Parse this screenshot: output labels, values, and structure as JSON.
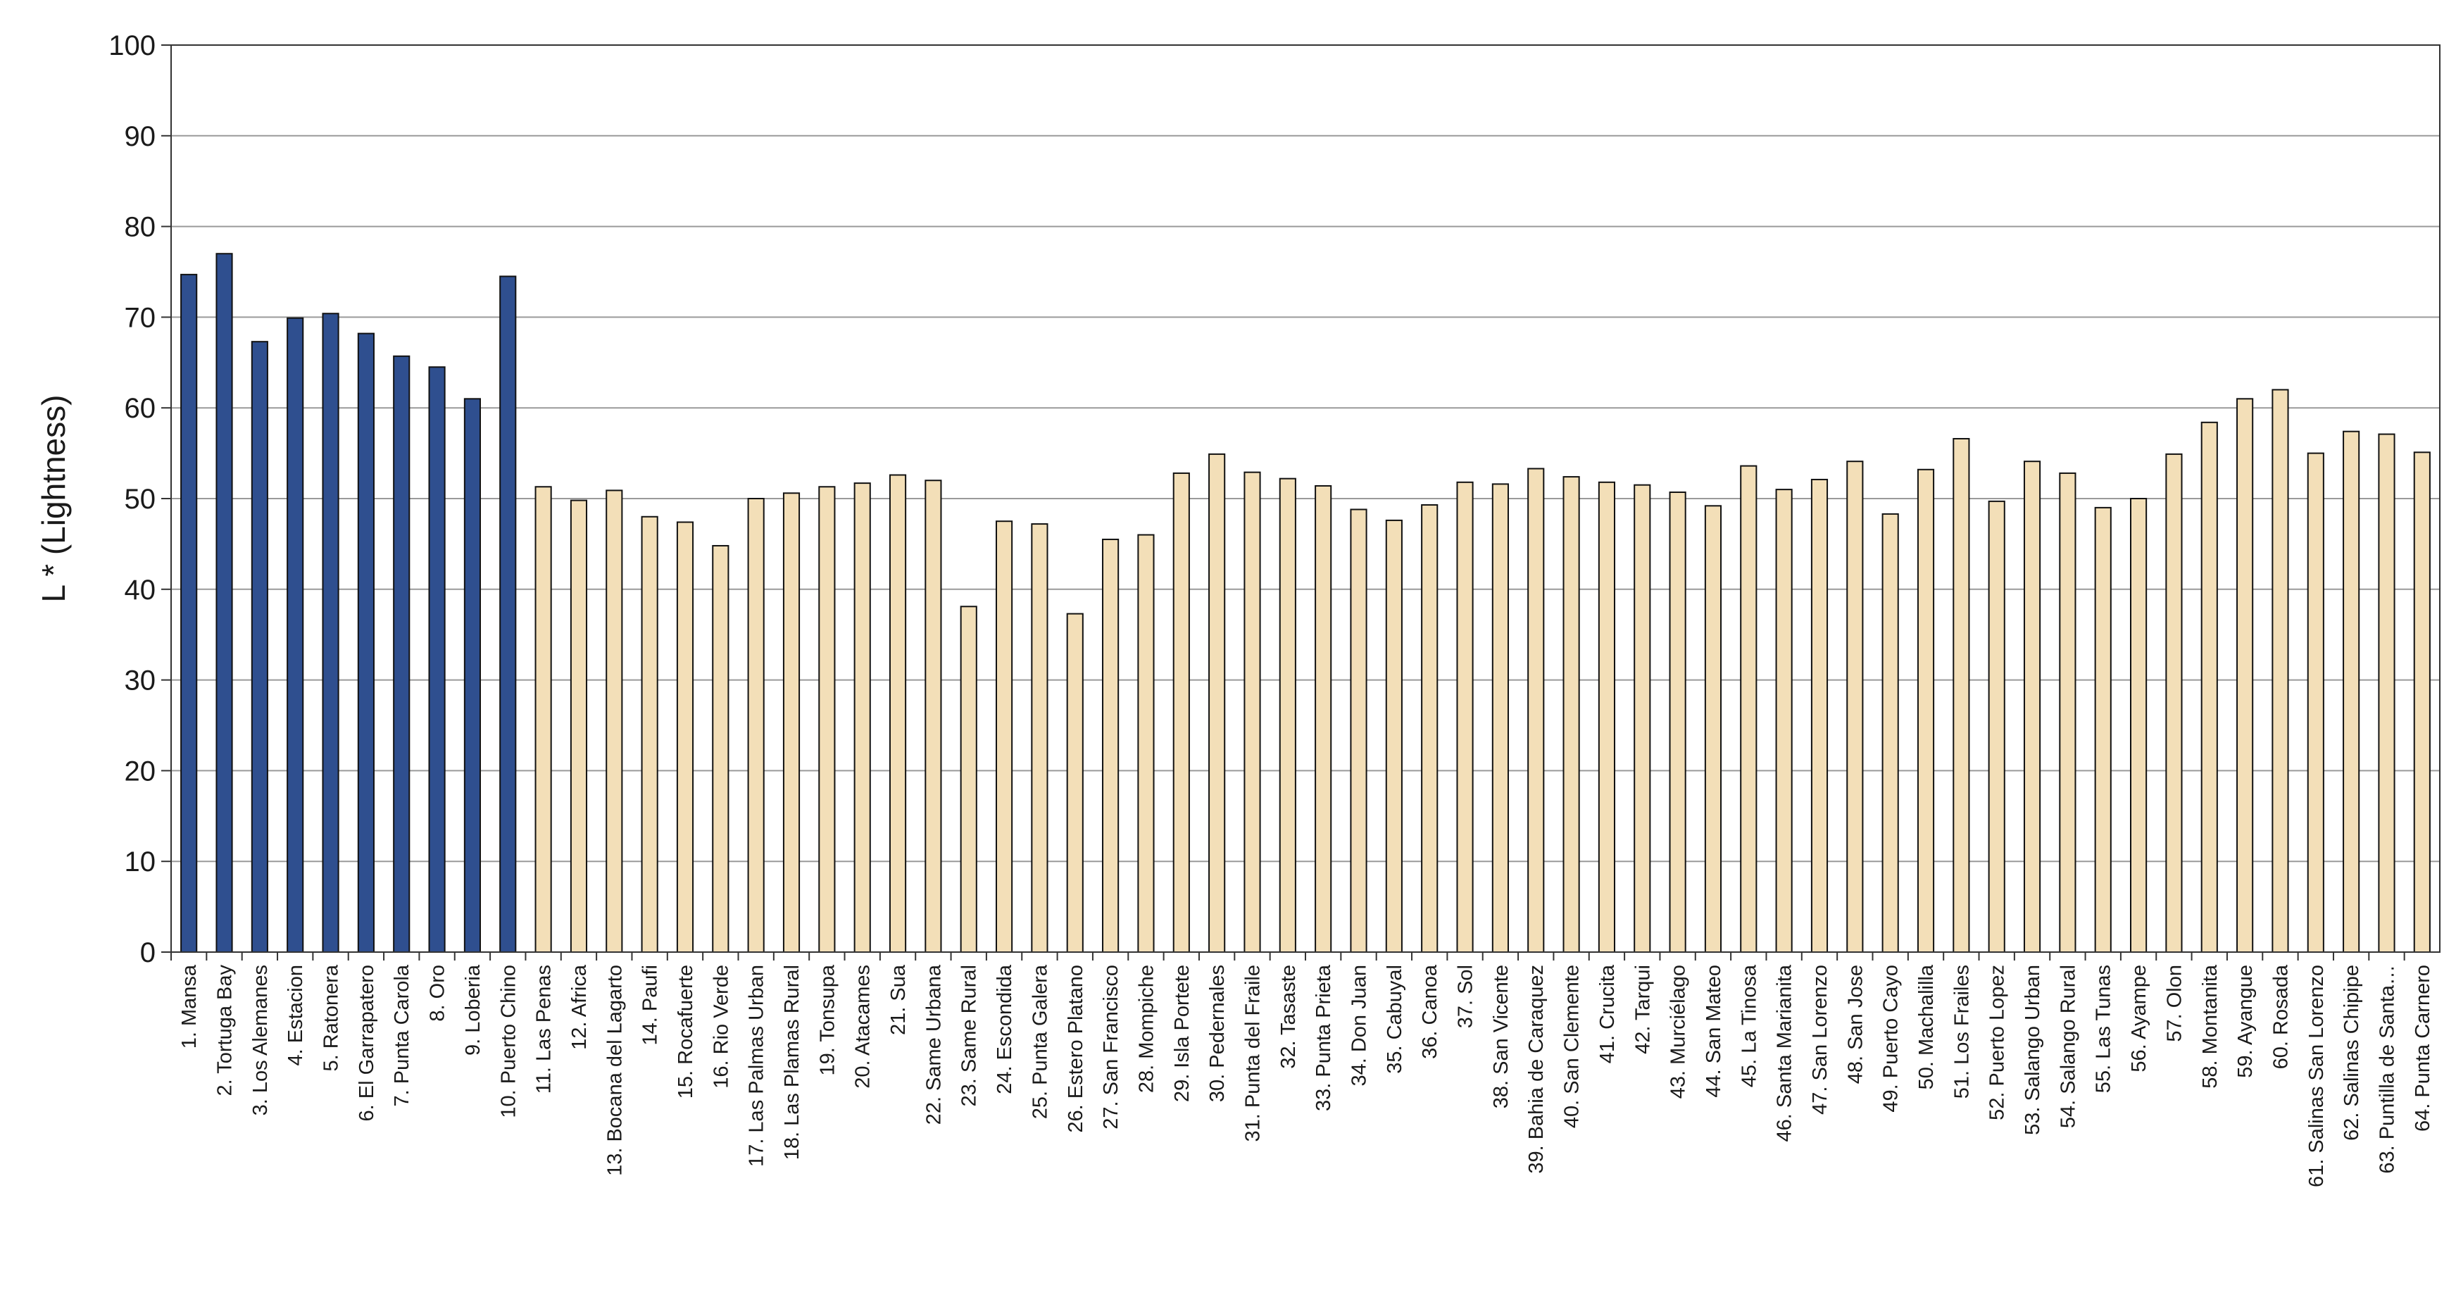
{
  "chart_data": {
    "type": "bar",
    "title": "",
    "xlabel": "",
    "ylabel": "L * (Lightness)",
    "ylim": [
      0,
      100
    ],
    "yticks": [
      0,
      10,
      20,
      30,
      40,
      50,
      60,
      70,
      80,
      90,
      100
    ],
    "grid": true,
    "legend": "none",
    "colors": {
      "group1": "#2f4f8f",
      "group2": "#f3dfb8",
      "edge": "#111111",
      "grid": "#9a9a9a"
    },
    "group1_count": 10,
    "categories": [
      "1. Mansa",
      "2. Tortuga Bay",
      "3. Los Alemanes",
      "4. Estacion",
      "5. Ratonera",
      "6. El Garrapatero",
      "7. Punta Carola",
      "8. Oro",
      "9. Loberia",
      "10. Puerto Chino",
      "11. Las Penas",
      "12. Africa",
      "13. Bocana del Lagarto",
      "14. Paufi",
      "15. Rocafuerte",
      "16. Rio Verde",
      "17. Las Palmas Urban",
      "18. Las Plamas Rural",
      "19. Tonsupa",
      "20. Atacames",
      "21. Sua",
      "22. Same Urbana",
      "23. Same Rural",
      "24. Escondida",
      "25. Punta Galera",
      "26. Estero Platano",
      "27. San Francisco",
      "28. Mompiche",
      "29. Isla Portete",
      "30. Pedernales",
      "31. Punta del Fraile",
      "32. Tasaste",
      "33. Punta Prieta",
      "34. Don Juan",
      "35. Cabuyal",
      "36. Canoa",
      "37. Sol",
      "38. San Vicente",
      "39. Bahia de Caraquez",
      "40. San Clemente",
      "41. Crucita",
      "42. Tarqui",
      "43. Murciélago",
      "44. San Mateo",
      "45. La Tinosa",
      "46. Santa Marianita",
      "47. San Lorenzo",
      "48. San Jose",
      "49. Puerto Cayo",
      "50. Machalilla",
      "51. Los Frailes",
      "52. Puerto Lopez",
      "53. Salango Urban",
      "54. Salango Rural",
      "55. Las Tunas",
      "56. Ayampe",
      "57. Olon",
      "58. Montanita",
      "59. Ayangue",
      "60. Rosada",
      "61. Salinas San Lorenzo",
      "62. Salinas Chipipe",
      "63. Puntilla de Santa…",
      "64. Punta Carnero"
    ],
    "values": [
      74.7,
      77.0,
      67.3,
      69.9,
      70.4,
      68.2,
      65.7,
      64.5,
      61.0,
      74.5,
      51.3,
      49.8,
      50.9,
      48.0,
      47.4,
      44.8,
      50.0,
      50.6,
      51.3,
      51.7,
      52.6,
      52.0,
      38.1,
      47.5,
      47.2,
      37.3,
      45.5,
      46.0,
      52.8,
      54.9,
      52.9,
      52.2,
      51.4,
      48.8,
      47.6,
      49.3,
      51.8,
      51.6,
      53.3,
      52.4,
      51.8,
      51.5,
      50.7,
      49.2,
      53.6,
      51.0,
      52.1,
      54.1,
      48.3,
      53.2,
      56.6,
      49.7,
      54.1,
      52.8,
      49.0,
      50.0,
      54.9,
      58.4,
      61.0,
      62.0,
      55.0,
      57.4,
      57.1,
      55.1
    ]
  }
}
